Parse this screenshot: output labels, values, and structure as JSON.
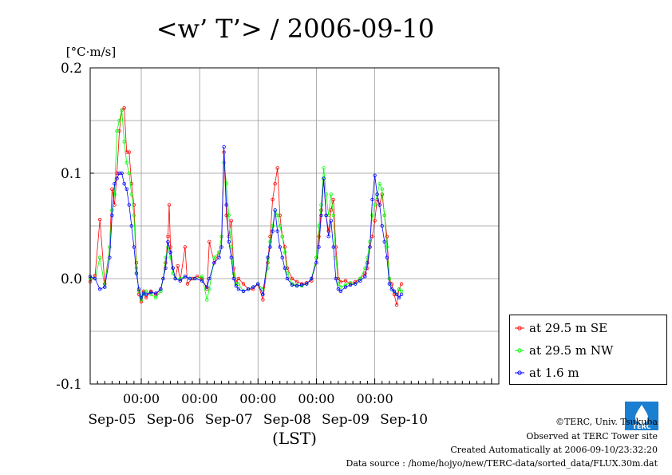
{
  "chart_data": {
    "type": "line",
    "title": "<w’ T’> / 2006-09-10",
    "unit_label": "[°C·m/s]",
    "xlabel": "(LST)",
    "ylim": [
      -0.1,
      0.2
    ],
    "yticks": [
      "0.2",
      "0.1",
      "0.0",
      "-0.1"
    ],
    "ytick_values": [
      0.2,
      0.1,
      0.0,
      -0.1
    ],
    "x_range_hours": [
      -21,
      147
    ],
    "time_ticks": [
      "00:00",
      "00:00",
      "00:00",
      "00:00",
      "00:00"
    ],
    "date_ticks": [
      "Sep-05",
      "Sep-06",
      "Sep-07",
      "Sep-08",
      "Sep-09",
      "Sep-10"
    ],
    "grid": true,
    "legend_position": "right",
    "series": [
      {
        "name": "at 29.5 m SE",
        "color": "#ff0000",
        "points": [
          [
            -21,
            -0.003
          ],
          [
            -19,
            0.003
          ],
          [
            -17,
            0.056
          ],
          [
            -15,
            -0.005
          ],
          [
            -13,
            0.03
          ],
          [
            -12,
            0.085
          ],
          [
            -11,
            0.07
          ],
          [
            -10,
            0.1
          ],
          [
            -9,
            0.14
          ],
          [
            -8,
            0.16
          ],
          [
            -7,
            0.162
          ],
          [
            -6,
            0.12
          ],
          [
            -5,
            0.12
          ],
          [
            -4,
            0.09
          ],
          [
            -3,
            0.07
          ],
          [
            -2,
            0.015
          ],
          [
            -1,
            -0.015
          ],
          [
            0,
            -0.022
          ],
          [
            1,
            -0.012
          ],
          [
            2,
            -0.018
          ],
          [
            4,
            -0.012
          ],
          [
            6,
            -0.015
          ],
          [
            8,
            -0.01
          ],
          [
            9,
            0.0
          ],
          [
            10,
            0.015
          ],
          [
            11,
            0.04
          ],
          [
            11.5,
            0.07
          ],
          [
            12,
            0.03
          ],
          [
            13,
            0.01
          ],
          [
            14,
            0.0
          ],
          [
            15,
            0.012
          ],
          [
            16,
            -0.002
          ],
          [
            18,
            0.03
          ],
          [
            19,
            -0.005
          ],
          [
            21,
            0.0
          ],
          [
            23,
            0.002
          ],
          [
            25,
            0.0
          ],
          [
            27,
            -0.01
          ],
          [
            28,
            0.035
          ],
          [
            30,
            0.015
          ],
          [
            32,
            0.025
          ],
          [
            33,
            0.04
          ],
          [
            34,
            0.12
          ],
          [
            35,
            0.06
          ],
          [
            36,
            0.04
          ],
          [
            37,
            0.055
          ],
          [
            38,
            0.01
          ],
          [
            39,
            -0.003
          ],
          [
            40,
            0.0
          ],
          [
            42,
            -0.005
          ],
          [
            44,
            -0.01
          ],
          [
            46,
            -0.01
          ],
          [
            48,
            -0.005
          ],
          [
            50,
            -0.02
          ],
          [
            52,
            0.015
          ],
          [
            53,
            0.04
          ],
          [
            54,
            0.075
          ],
          [
            55,
            0.09
          ],
          [
            56,
            0.105
          ],
          [
            57,
            0.06
          ],
          [
            58,
            0.04
          ],
          [
            59,
            0.03
          ],
          [
            60,
            0.01
          ],
          [
            62,
            0.0
          ],
          [
            64,
            -0.003
          ],
          [
            66,
            -0.005
          ],
          [
            68,
            -0.004
          ],
          [
            70,
            -0.002
          ],
          [
            72,
            0.02
          ],
          [
            73,
            0.04
          ],
          [
            74,
            0.065
          ],
          [
            75,
            0.095
          ],
          [
            76,
            0.06
          ],
          [
            77,
            0.045
          ],
          [
            78,
            0.065
          ],
          [
            79,
            0.075
          ],
          [
            80,
            0.03
          ],
          [
            81,
            0.0
          ],
          [
            82,
            -0.003
          ],
          [
            84,
            -0.002
          ],
          [
            86,
            -0.005
          ],
          [
            88,
            -0.003
          ],
          [
            90,
            0.0
          ],
          [
            92,
            0.005
          ],
          [
            93,
            0.01
          ],
          [
            94,
            0.03
          ],
          [
            95,
            0.04
          ],
          [
            96,
            0.055
          ],
          [
            97,
            0.075
          ],
          [
            98,
            0.07
          ],
          [
            99,
            0.08
          ],
          [
            100,
            0.06
          ],
          [
            101,
            0.04
          ],
          [
            102,
            0.0
          ],
          [
            103,
            -0.005
          ],
          [
            104,
            -0.015
          ],
          [
            105,
            -0.025
          ],
          [
            106,
            -0.01
          ],
          [
            107,
            -0.005
          ]
        ]
      },
      {
        "name": "at 29.5 m NW",
        "color": "#00ff00",
        "points": [
          [
            -21,
            0.0
          ],
          [
            -19,
            0.0
          ],
          [
            -17,
            0.02
          ],
          [
            -15,
            -0.008
          ],
          [
            -13,
            0.03
          ],
          [
            -12,
            0.065
          ],
          [
            -11,
            0.08
          ],
          [
            -10,
            0.14
          ],
          [
            -9,
            0.15
          ],
          [
            -8,
            0.16
          ],
          [
            -7,
            0.13
          ],
          [
            -6,
            0.11
          ],
          [
            -5,
            0.1
          ],
          [
            -4,
            0.08
          ],
          [
            -3,
            0.06
          ],
          [
            -2,
            0.01
          ],
          [
            -1,
            -0.012
          ],
          [
            0,
            -0.02
          ],
          [
            1,
            -0.015
          ],
          [
            2,
            -0.012
          ],
          [
            4,
            -0.015
          ],
          [
            6,
            -0.018
          ],
          [
            8,
            -0.012
          ],
          [
            9,
            0.0
          ],
          [
            10,
            0.02
          ],
          [
            11,
            0.03
          ],
          [
            12,
            0.02
          ],
          [
            13,
            0.005
          ],
          [
            14,
            0.0
          ],
          [
            16,
            0.0
          ],
          [
            18,
            0.002
          ],
          [
            20,
            0.0
          ],
          [
            22,
            0.0
          ],
          [
            25,
            0.002
          ],
          [
            27,
            -0.02
          ],
          [
            28,
            -0.01
          ],
          [
            30,
            0.02
          ],
          [
            32,
            0.025
          ],
          [
            33,
            0.04
          ],
          [
            34,
            0.11
          ],
          [
            35,
            0.09
          ],
          [
            36,
            0.06
          ],
          [
            37,
            0.03
          ],
          [
            38,
            0.005
          ],
          [
            39,
            -0.005
          ],
          [
            40,
            -0.005
          ],
          [
            42,
            -0.012
          ],
          [
            44,
            -0.01
          ],
          [
            46,
            -0.008
          ],
          [
            48,
            -0.005
          ],
          [
            50,
            -0.01
          ],
          [
            52,
            0.01
          ],
          [
            53,
            0.035
          ],
          [
            54,
            0.05
          ],
          [
            55,
            0.065
          ],
          [
            56,
            0.06
          ],
          [
            57,
            0.05
          ],
          [
            58,
            0.04
          ],
          [
            59,
            0.025
          ],
          [
            60,
            0.005
          ],
          [
            62,
            -0.005
          ],
          [
            64,
            -0.006
          ],
          [
            66,
            -0.007
          ],
          [
            68,
            -0.005
          ],
          [
            70,
            0.0
          ],
          [
            72,
            0.02
          ],
          [
            73,
            0.05
          ],
          [
            74,
            0.07
          ],
          [
            75,
            0.105
          ],
          [
            76,
            0.08
          ],
          [
            77,
            0.06
          ],
          [
            78,
            0.08
          ],
          [
            79,
            0.06
          ],
          [
            80,
            0.02
          ],
          [
            81,
            -0.005
          ],
          [
            82,
            -0.008
          ],
          [
            84,
            -0.006
          ],
          [
            86,
            -0.004
          ],
          [
            88,
            -0.005
          ],
          [
            90,
            0.0
          ],
          [
            92,
            0.01
          ],
          [
            93,
            0.02
          ],
          [
            94,
            0.035
          ],
          [
            95,
            0.06
          ],
          [
            96,
            0.07
          ],
          [
            97,
            0.08
          ],
          [
            98,
            0.09
          ],
          [
            99,
            0.085
          ],
          [
            100,
            0.06
          ],
          [
            101,
            0.03
          ],
          [
            102,
            0.0
          ],
          [
            103,
            -0.01
          ],
          [
            104,
            -0.012
          ],
          [
            105,
            -0.015
          ],
          [
            106,
            -0.01
          ],
          [
            107,
            -0.012
          ]
        ]
      },
      {
        "name": "at 1.6 m",
        "color": "#0000ff",
        "points": [
          [
            -21,
            0.002
          ],
          [
            -19,
            0.0
          ],
          [
            -17,
            -0.01
          ],
          [
            -15,
            -0.008
          ],
          [
            -13,
            0.02
          ],
          [
            -12,
            0.06
          ],
          [
            -11,
            0.09
          ],
          [
            -10,
            0.095
          ],
          [
            -9,
            0.1
          ],
          [
            -8,
            0.1
          ],
          [
            -7,
            0.09
          ],
          [
            -6,
            0.085
          ],
          [
            -5,
            0.07
          ],
          [
            -4,
            0.05
          ],
          [
            -3,
            0.03
          ],
          [
            -2,
            0.005
          ],
          [
            -1,
            -0.01
          ],
          [
            0,
            -0.018
          ],
          [
            1,
            -0.014
          ],
          [
            2,
            -0.015
          ],
          [
            4,
            -0.013
          ],
          [
            6,
            -0.014
          ],
          [
            8,
            -0.01
          ],
          [
            9,
            0.0
          ],
          [
            10,
            0.01
          ],
          [
            11,
            0.035
          ],
          [
            12,
            0.025
          ],
          [
            13,
            0.01
          ],
          [
            14,
            0.0
          ],
          [
            16,
            -0.002
          ],
          [
            18,
            0.002
          ],
          [
            20,
            0.0
          ],
          [
            22,
            0.0
          ],
          [
            25,
            -0.002
          ],
          [
            27,
            -0.008
          ],
          [
            28,
            0.0
          ],
          [
            30,
            0.015
          ],
          [
            32,
            0.02
          ],
          [
            33,
            0.03
          ],
          [
            34,
            0.125
          ],
          [
            35,
            0.07
          ],
          [
            36,
            0.035
          ],
          [
            37,
            0.02
          ],
          [
            38,
            0.0
          ],
          [
            39,
            -0.007
          ],
          [
            40,
            -0.01
          ],
          [
            42,
            -0.012
          ],
          [
            44,
            -0.01
          ],
          [
            46,
            -0.008
          ],
          [
            48,
            -0.005
          ],
          [
            50,
            -0.015
          ],
          [
            52,
            0.02
          ],
          [
            53,
            0.03
          ],
          [
            54,
            0.045
          ],
          [
            55,
            0.065
          ],
          [
            56,
            0.045
          ],
          [
            57,
            0.03
          ],
          [
            58,
            0.02
          ],
          [
            59,
            0.01
          ],
          [
            60,
            0.0
          ],
          [
            62,
            -0.006
          ],
          [
            64,
            -0.007
          ],
          [
            66,
            -0.006
          ],
          [
            68,
            -0.005
          ],
          [
            70,
            0.0
          ],
          [
            72,
            0.015
          ],
          [
            73,
            0.03
          ],
          [
            74,
            0.06
          ],
          [
            75,
            0.095
          ],
          [
            76,
            0.06
          ],
          [
            77,
            0.04
          ],
          [
            78,
            0.055
          ],
          [
            79,
            0.03
          ],
          [
            80,
            0.0
          ],
          [
            81,
            -0.01
          ],
          [
            82,
            -0.012
          ],
          [
            84,
            -0.008
          ],
          [
            86,
            -0.006
          ],
          [
            88,
            -0.005
          ],
          [
            90,
            -0.002
          ],
          [
            92,
            0.002
          ],
          [
            93,
            0.015
          ],
          [
            94,
            0.03
          ],
          [
            95,
            0.075
          ],
          [
            96,
            0.098
          ],
          [
            97,
            0.08
          ],
          [
            98,
            0.07
          ],
          [
            99,
            0.05
          ],
          [
            100,
            0.035
          ],
          [
            101,
            0.02
          ],
          [
            102,
            -0.005
          ],
          [
            103,
            -0.01
          ],
          [
            104,
            -0.012
          ],
          [
            105,
            -0.015
          ],
          [
            106,
            -0.018
          ],
          [
            107,
            -0.015
          ]
        ]
      }
    ]
  },
  "footer": {
    "copyright": "©TERC, Univ. Tsukuba",
    "observed": "Observed at TERC Tower site",
    "created": "Created Automatically at 2006-09-10/23:32:20",
    "source": "Data source : /home/hojyo/new/TERC-data/sorted_data/FLUX.30m.dat"
  },
  "logo": {
    "text": "TERC",
    "color": "#1a7fd0"
  }
}
